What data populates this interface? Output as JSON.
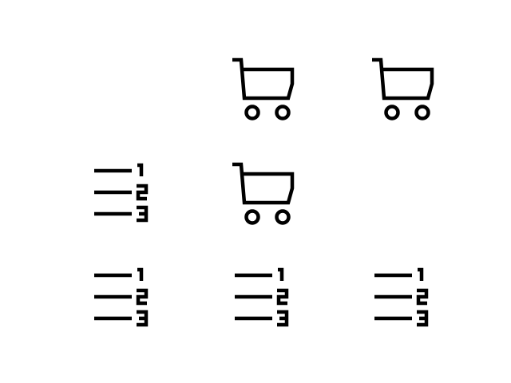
{
  "icon_grid": {
    "cells": [
      {
        "row": 0,
        "col": 0,
        "icon": null
      },
      {
        "row": 0,
        "col": 1,
        "icon": "shopping-cart-icon"
      },
      {
        "row": 0,
        "col": 2,
        "icon": "shopping-cart-icon"
      },
      {
        "row": 1,
        "col": 0,
        "icon": "ordered-list-icon"
      },
      {
        "row": 1,
        "col": 1,
        "icon": "shopping-cart-icon"
      },
      {
        "row": 1,
        "col": 2,
        "icon": null
      },
      {
        "row": 2,
        "col": 0,
        "icon": "ordered-list-icon"
      },
      {
        "row": 2,
        "col": 1,
        "icon": "ordered-list-icon"
      },
      {
        "row": 2,
        "col": 2,
        "icon": "ordered-list-icon"
      }
    ],
    "icon_color": "#000000",
    "background": "#ffffff"
  }
}
